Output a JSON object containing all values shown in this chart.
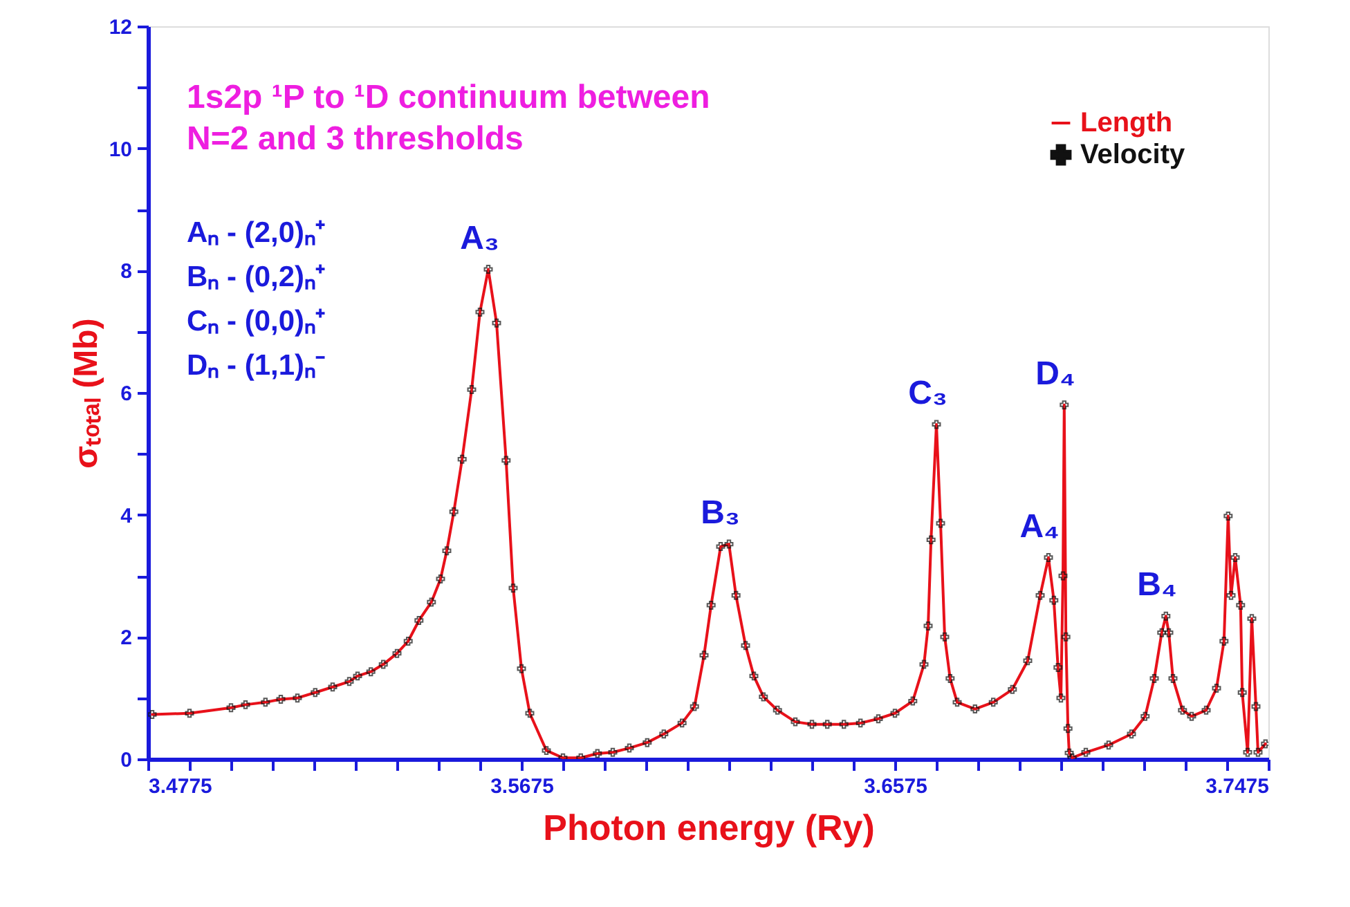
{
  "chart_data": {
    "type": "line",
    "title": "1s2p ¹P to ¹D continuum between\nN=2 and 3 thresholds",
    "xlabel": "Photon energy (Ry)",
    "ylabel": "σₜₒₜₐₗ (Mb)",
    "x": [
      3.4785,
      3.4875,
      3.4975,
      3.501,
      3.5058,
      3.5095,
      3.5135,
      3.5178,
      3.522,
      3.526,
      3.528,
      3.5312,
      3.5342,
      3.5375,
      3.5402,
      3.5428,
      3.5458,
      3.548,
      3.5495,
      3.5512,
      3.5532,
      3.5555,
      3.5575,
      3.5595,
      3.5615,
      3.5638,
      3.5655,
      3.5675,
      3.5695,
      3.5735,
      3.5775,
      3.5818,
      3.5858,
      3.5895,
      3.5935,
      3.5978,
      3.6018,
      3.6062,
      3.6092,
      3.6115,
      3.6132,
      3.6155,
      3.6175,
      3.6192,
      3.6215,
      3.6235,
      3.6258,
      3.6292,
      3.6335,
      3.6375,
      3.6412,
      3.6452,
      3.6492,
      3.6535,
      3.6575,
      3.6618,
      3.6645,
      3.6655,
      3.6662,
      3.6675,
      3.6685,
      3.6695,
      3.6708,
      3.6725,
      3.6768,
      3.6812,
      3.6858,
      3.6895,
      3.6925,
      3.6945,
      3.6958,
      3.6968,
      3.6975,
      3.698,
      3.6983,
      3.6987,
      3.6992,
      3.6995,
      3.7002,
      3.7035,
      3.709,
      3.7145,
      3.7178,
      3.72,
      3.7218,
      3.7228,
      3.7235,
      3.7245,
      3.7268,
      3.729,
      3.7325,
      3.735,
      3.7368,
      3.7378,
      3.7385,
      3.7395,
      3.7408,
      3.7412,
      3.7425,
      3.7435,
      3.7445,
      3.745,
      3.7468
    ],
    "series": [
      {
        "name": "Length",
        "color": "#e8111a",
        "marker": "none",
        "values": [
          0.73,
          0.75,
          0.84,
          0.89,
          0.93,
          0.98,
          1.0,
          1.09,
          1.18,
          1.27,
          1.36,
          1.43,
          1.55,
          1.73,
          1.93,
          2.27,
          2.57,
          2.95,
          3.41,
          4.05,
          4.91,
          6.05,
          7.32,
          8.02,
          7.14,
          4.89,
          2.8,
          1.48,
          0.75,
          0.14,
          0.02,
          0.02,
          0.09,
          0.11,
          0.18,
          0.27,
          0.41,
          0.59,
          0.86,
          1.7,
          2.52,
          3.48,
          3.52,
          2.68,
          1.86,
          1.36,
          1.02,
          0.8,
          0.61,
          0.57,
          0.57,
          0.57,
          0.59,
          0.66,
          0.75,
          0.95,
          1.55,
          2.18,
          3.59,
          5.48,
          3.86,
          2.0,
          1.32,
          0.93,
          0.82,
          0.93,
          1.14,
          1.61,
          2.68,
          3.3,
          2.6,
          1.5,
          1.0,
          3.0,
          5.8,
          2.0,
          0.5,
          0.1,
          0.02,
          0.11,
          0.23,
          0.41,
          0.7,
          1.32,
          2.07,
          2.34,
          2.07,
          1.32,
          0.8,
          0.7,
          0.8,
          1.16,
          1.93,
          3.98,
          2.68,
          3.3,
          2.52,
          1.09,
          0.11,
          2.3,
          0.86,
          0.11,
          0.25
        ]
      },
      {
        "name": "Velocity",
        "type": "scatter",
        "color": "#111111",
        "marker": "cross",
        "values": [
          0.73,
          0.75,
          0.84,
          0.89,
          0.93,
          0.98,
          1.0,
          1.09,
          1.18,
          1.27,
          1.36,
          1.43,
          1.55,
          1.73,
          1.93,
          2.27,
          2.57,
          2.95,
          3.41,
          4.05,
          4.91,
          6.05,
          7.32,
          8.02,
          7.14,
          4.89,
          2.8,
          1.48,
          0.75,
          0.14,
          0.02,
          0.02,
          0.09,
          0.11,
          0.18,
          0.27,
          0.41,
          0.59,
          0.86,
          1.7,
          2.52,
          3.48,
          3.52,
          2.68,
          1.86,
          1.36,
          1.02,
          0.8,
          0.61,
          0.57,
          0.57,
          0.57,
          0.59,
          0.66,
          0.75,
          0.95,
          1.55,
          2.18,
          3.59,
          5.48,
          3.86,
          2.0,
          1.32,
          0.93,
          0.82,
          0.93,
          1.14,
          1.61,
          2.68,
          3.3,
          2.6,
          1.5,
          1.0,
          3.0,
          5.8,
          2.0,
          0.5,
          0.1,
          0.02,
          0.11,
          0.23,
          0.41,
          0.7,
          1.32,
          2.07,
          2.34,
          2.07,
          1.32,
          0.8,
          0.7,
          0.8,
          1.16,
          1.93,
          3.98,
          2.68,
          3.3,
          2.52,
          1.09,
          0.11,
          2.3,
          0.86,
          0.11,
          0.25
        ]
      }
    ],
    "xlim": [
      3.4775,
      3.7475
    ],
    "xticks": [
      3.4775,
      {
        "value": 3.4875,
        "label": null
      },
      {
        "value": 3.4975,
        "label": null
      },
      {
        "value": 3.5075,
        "label": null
      },
      {
        "value": 3.5175,
        "label": null
      },
      {
        "value": 3.5275,
        "label": null
      },
      {
        "value": 3.5375,
        "label": null
      },
      {
        "value": 3.5475,
        "label": null
      },
      {
        "value": 3.5575,
        "label": null
      },
      3.5675,
      {
        "value": 3.5775,
        "label": null
      },
      {
        "value": 3.5875,
        "label": null
      },
      {
        "value": 3.5975,
        "label": null
      },
      {
        "value": 3.6075,
        "label": null
      },
      {
        "value": 3.6175,
        "label": null
      },
      {
        "value": 3.6275,
        "label": null
      },
      {
        "value": 3.6375,
        "label": null
      },
      {
        "value": 3.6475,
        "label": null
      },
      3.6575,
      {
        "value": 3.6675,
        "label": null
      },
      {
        "value": 3.6775,
        "label": null
      },
      {
        "value": 3.6875,
        "label": null
      },
      {
        "value": 3.6975,
        "label": null
      },
      {
        "value": 3.7075,
        "label": null
      },
      {
        "value": 3.7175,
        "label": null
      },
      {
        "value": 3.7275,
        "label": null
      },
      {
        "value": 3.7375,
        "label": null
      },
      3.7475
    ],
    "ylim": [
      0,
      12
    ],
    "yticks": [
      0,
      {
        "value": 1,
        "label": null
      },
      2,
      {
        "value": 3,
        "label": null
      },
      4,
      {
        "value": 5,
        "label": null
      },
      6,
      {
        "value": 7,
        "label": null
      },
      8,
      {
        "value": 9,
        "label": null
      },
      10,
      {
        "value": 11,
        "label": null
      },
      12
    ],
    "grid": false,
    "legend": "top right",
    "annotations": [
      {
        "text": "A₃",
        "x": 3.5595,
        "y": 8.02
      },
      {
        "text": "B₃",
        "x": 3.6175,
        "y": 3.52
      },
      {
        "text": "C₃",
        "x": 3.6675,
        "y": 5.48
      },
      {
        "text": "D₄",
        "x": 3.6983,
        "y": 5.8
      },
      {
        "text": "A₄",
        "x": 3.6945,
        "y": 3.3
      },
      {
        "text": "B₄",
        "x": 3.7228,
        "y": 2.34
      },
      "Aₙ  -  (2,0)ₙ⁺",
      "Bₙ  -  (0,2)ₙ⁺",
      "Cₙ  -  (0,0)ₙ⁺",
      "Dₙ  -  (1,1)ₙ⁻"
    ]
  }
}
